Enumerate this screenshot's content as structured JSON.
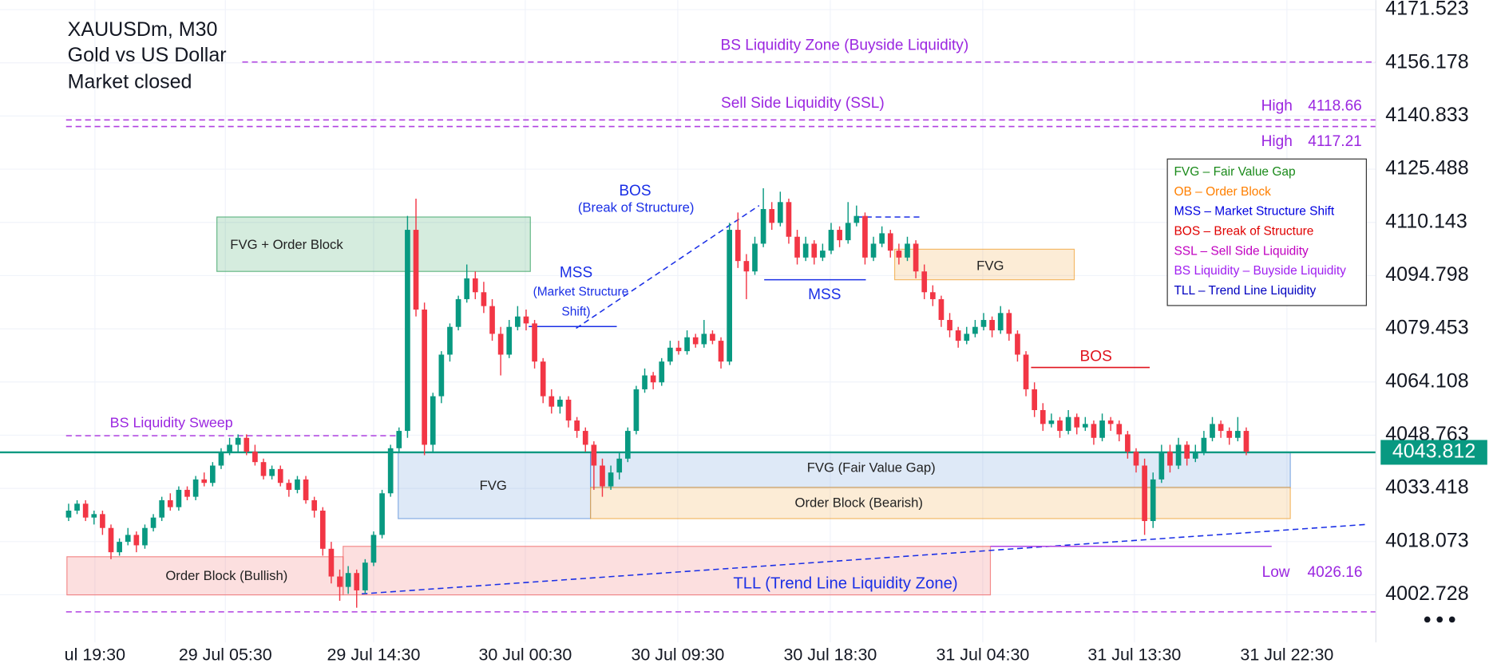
{
  "header": {
    "symbol": "XAUUSDm, M30",
    "name": "Gold vs US Dollar",
    "status": "Market closed"
  },
  "chart_data": {
    "type": "candlestick",
    "up_color": "#089981",
    "down_color": "#f23645",
    "ohlc": [
      [
        4025,
        4029,
        4024,
        4027
      ],
      [
        4027,
        4030,
        4026,
        4029
      ],
      [
        4029,
        4030,
        4024,
        4025
      ],
      [
        4025,
        4027,
        4023,
        4026
      ],
      [
        4026,
        4027,
        4020,
        4022
      ],
      [
        4022,
        4023,
        4013,
        4015
      ],
      [
        4015,
        4019,
        4014,
        4018
      ],
      [
        4018,
        4022,
        4017,
        4020
      ],
      [
        4020,
        4021,
        4015,
        4017
      ],
      [
        4017,
        4023,
        4016,
        4022
      ],
      [
        4022,
        4026,
        4021,
        4025
      ],
      [
        4025,
        4031,
        4024,
        4030
      ],
      [
        4030,
        4032,
        4027,
        4028
      ],
      [
        4028,
        4034,
        4027,
        4033
      ],
      [
        4033,
        4034,
        4030,
        4031
      ],
      [
        4031,
        4037,
        4030,
        4036
      ],
      [
        4036,
        4038,
        4034,
        4035
      ],
      [
        4035,
        4041,
        4034,
        4040
      ],
      [
        4040,
        4045,
        4039,
        4044
      ],
      [
        4044,
        4048,
        4043,
        4046
      ],
      [
        4046,
        4049,
        4044,
        4048
      ],
      [
        4048,
        4049,
        4043,
        4044
      ],
      [
        4044,
        4046,
        4040,
        4041
      ],
      [
        4041,
        4042,
        4036,
        4037
      ],
      [
        4037,
        4040,
        4036,
        4039
      ],
      [
        4039,
        4040,
        4034,
        4035
      ],
      [
        4035,
        4036,
        4031,
        4033
      ],
      [
        4033,
        4037,
        4032,
        4036
      ],
      [
        4036,
        4037,
        4029,
        4030
      ],
      [
        4030,
        4031,
        4025,
        4027
      ],
      [
        4027,
        4028,
        4014,
        4016
      ],
      [
        4016,
        4018,
        4006,
        4008
      ],
      [
        4008,
        4010,
        4001,
        4005
      ],
      [
        4005,
        4011,
        4003,
        4009
      ],
      [
        4009,
        4010,
        3999,
        4004
      ],
      [
        4004,
        4013,
        4003,
        4012
      ],
      [
        4012,
        4021,
        4011,
        4020
      ],
      [
        4020,
        4033,
        4019,
        4032
      ],
      [
        4032,
        4046,
        4031,
        4045
      ],
      [
        4045,
        4051,
        4044,
        4050
      ],
      [
        4050,
        4112,
        4048,
        4108
      ],
      [
        4108,
        4117,
        4083,
        4085
      ],
      [
        4085,
        4087,
        4043,
        4046
      ],
      [
        4046,
        4061,
        4044,
        4060
      ],
      [
        4060,
        4073,
        4058,
        4072
      ],
      [
        4072,
        4081,
        4070,
        4080
      ],
      [
        4080,
        4089,
        4079,
        4088
      ],
      [
        4088,
        4098,
        4087,
        4094
      ],
      [
        4094,
        4096,
        4088,
        4090
      ],
      [
        4090,
        4093,
        4084,
        4086
      ],
      [
        4086,
        4088,
        4076,
        4078
      ],
      [
        4078,
        4080,
        4066,
        4072
      ],
      [
        4072,
        4082,
        4071,
        4080
      ],
      [
        4080,
        4086,
        4079,
        4083
      ],
      [
        4083,
        4085,
        4079,
        4081
      ],
      [
        4081,
        4082,
        4068,
        4070
      ],
      [
        4070,
        4071,
        4058,
        4060
      ],
      [
        4060,
        4062,
        4055,
        4057
      ],
      [
        4057,
        4060,
        4055,
        4059
      ],
      [
        4059,
        4060,
        4051,
        4053
      ],
      [
        4053,
        4054,
        4048,
        4050
      ],
      [
        4050,
        4051,
        4044,
        4046
      ],
      [
        4046,
        4047,
        4033,
        4040
      ],
      [
        4040,
        4042,
        4031,
        4034
      ],
      [
        4034,
        4040,
        4033,
        4038
      ],
      [
        4038,
        4044,
        4036,
        4042
      ],
      [
        4042,
        4051,
        4041,
        4050
      ],
      [
        4050,
        4063,
        4049,
        4062
      ],
      [
        4062,
        4068,
        4061,
        4066
      ],
      [
        4066,
        4067,
        4062,
        4064
      ],
      [
        4064,
        4071,
        4063,
        4070
      ],
      [
        4070,
        4076,
        4069,
        4074
      ],
      [
        4074,
        4076,
        4072,
        4073
      ],
      [
        4073,
        4079,
        4072,
        4077
      ],
      [
        4077,
        4078,
        4074,
        4075
      ],
      [
        4075,
        4082,
        4074,
        4078
      ],
      [
        4078,
        4079,
        4075,
        4076
      ],
      [
        4076,
        4077,
        4068,
        4070
      ],
      [
        4070,
        4110,
        4069,
        4108
      ],
      [
        4108,
        4113,
        4097,
        4099
      ],
      [
        4099,
        4101,
        4088,
        4096
      ],
      [
        4096,
        4106,
        4095,
        4104
      ],
      [
        4104,
        4120,
        4103,
        4114
      ],
      [
        4114,
        4116,
        4108,
        4110
      ],
      [
        4110,
        4119,
        4109,
        4116
      ],
      [
        4116,
        4117,
        4104,
        4106
      ],
      [
        4106,
        4108,
        4098,
        4100
      ],
      [
        4100,
        4106,
        4099,
        4104
      ],
      [
        4104,
        4105,
        4098,
        4100
      ],
      [
        4100,
        4104,
        4099,
        4102
      ],
      [
        4102,
        4110,
        4101,
        4108
      ],
      [
        4108,
        4109,
        4103,
        4105
      ],
      [
        4105,
        4116,
        4104,
        4110
      ],
      [
        4110,
        4115,
        4109,
        4112
      ],
      [
        4112,
        4113,
        4098,
        4100
      ],
      [
        4100,
        4106,
        4099,
        4104
      ],
      [
        4104,
        4109,
        4103,
        4107
      ],
      [
        4107,
        4108,
        4100,
        4102
      ],
      [
        4102,
        4104,
        4098,
        4100
      ],
      [
        4100,
        4106,
        4099,
        4104
      ],
      [
        4104,
        4105,
        4094,
        4096
      ],
      [
        4096,
        4098,
        4088,
        4090
      ],
      [
        4090,
        4092,
        4086,
        4088
      ],
      [
        4088,
        4089,
        4080,
        4082
      ],
      [
        4082,
        4084,
        4077,
        4079
      ],
      [
        4079,
        4080,
        4074,
        4076
      ],
      [
        4076,
        4080,
        4075,
        4078
      ],
      [
        4078,
        4082,
        4077,
        4080
      ],
      [
        4080,
        4084,
        4079,
        4082
      ],
      [
        4082,
        4083,
        4077,
        4079
      ],
      [
        4079,
        4086,
        4078,
        4084
      ],
      [
        4084,
        4085,
        4076,
        4078
      ],
      [
        4078,
        4079,
        4070,
        4072
      ],
      [
        4072,
        4073,
        4060,
        4062
      ],
      [
        4062,
        4064,
        4054,
        4056
      ],
      [
        4056,
        4058,
        4050,
        4052
      ],
      [
        4052,
        4055,
        4051,
        4053
      ],
      [
        4053,
        4054,
        4048,
        4050
      ],
      [
        4050,
        4056,
        4049,
        4054
      ],
      [
        4054,
        4055,
        4049,
        4051
      ],
      [
        4051,
        4054,
        4050,
        4052
      ],
      [
        4052,
        4053,
        4046,
        4048
      ],
      [
        4048,
        4055,
        4047,
        4053
      ],
      [
        4053,
        4054,
        4050,
        4052
      ],
      [
        4052,
        4053,
        4047,
        4049
      ],
      [
        4049,
        4050,
        4042,
        4044
      ],
      [
        4044,
        4045,
        4038,
        4040
      ],
      [
        4040,
        4042,
        4020,
        4024
      ],
      [
        4024,
        4038,
        4022,
        4036
      ],
      [
        4036,
        4046,
        4035,
        4044
      ],
      [
        4044,
        4046,
        4038,
        4040
      ],
      [
        4040,
        4048,
        4039,
        4046
      ],
      [
        4046,
        4047,
        4040,
        4042
      ],
      [
        4042,
        4046,
        4041,
        4044
      ],
      [
        4044,
        4050,
        4043,
        4048
      ],
      [
        4048,
        4054,
        4047,
        4052
      ],
      [
        4052,
        4053,
        4048,
        4050
      ],
      [
        4050,
        4051,
        4046,
        4048
      ],
      [
        4048,
        4054,
        4047,
        4050
      ],
      [
        4050,
        4051,
        4043,
        4044
      ]
    ],
    "xlim": [
      -8.1,
      154.3
    ],
    "xticks": [
      {
        "value": 3.1,
        "label": "ul 19:30"
      },
      {
        "value": 18.5,
        "label": "29 Jul 05:30"
      },
      {
        "value": 36.0,
        "label": "29 Jul 14:30"
      },
      {
        "value": 53.9,
        "label": "30 Jul 00:30"
      },
      {
        "value": 71.9,
        "label": "30 Jul 09:30"
      },
      {
        "value": 89.9,
        "label": "30 Jul 18:30"
      },
      {
        "value": 107.9,
        "label": "31 Jul 04:30"
      },
      {
        "value": 125.8,
        "label": "31 Jul 13:30"
      },
      {
        "value": 143.8,
        "label": "31 Jul 22:30"
      }
    ],
    "ylim": [
      3989.0,
      4174.27
    ],
    "yticks": [
      4002.728,
      4018.073,
      4033.418,
      4048.763,
      4064.108,
      4079.453,
      4094.798,
      4110.143,
      4125.488,
      4140.833,
      4156.178,
      4171.523
    ],
    "grid": true,
    "last_price": {
      "value": 4043.812,
      "color": "#089981"
    },
    "zones": [
      {
        "label": "FVG + Order Block",
        "x": [
          17.5,
          54.5
        ],
        "y": [
          4096.0,
          4111.7
        ],
        "color": "#2e9e5b"
      },
      {
        "label": "FVG",
        "x": [
          97.5,
          118.7
        ],
        "y": [
          4093.6,
          4102.4
        ],
        "color": "#f0a030"
      },
      {
        "label": "FVG",
        "x": [
          38.9,
          61.6
        ],
        "y": [
          4024.7,
          4043.9
        ],
        "color": "#5a8fd8"
      },
      {
        "label": "FVG (Fair Value Gap)",
        "x": [
          61.6,
          144.2
        ],
        "y": [
          4033.7,
          4043.9
        ],
        "color": "#5a8fd8"
      },
      {
        "label": "Order Block (Bearish)",
        "x": [
          61.6,
          144.2
        ],
        "y": [
          4024.7,
          4033.7
        ],
        "color": "#f0a030"
      },
      {
        "label": "Order Block (Bullish)",
        "x": [
          -0.2,
          32.4
        ],
        "y": [
          4002.7,
          4013.7
        ],
        "color": "#f06060"
      },
      {
        "label": "TLL (Trend Line Liquidity Zone)",
        "x": [
          32.4,
          108.8
        ],
        "y": [
          4002.7,
          4016.7
        ],
        "color": "#f06060"
      }
    ],
    "lines": [
      {
        "label": "BS Liquidity Zone (Buyside Liquidity)",
        "x": [
          20.5,
          154.3
        ],
        "y": [
          4156.4,
          4156.4
        ],
        "color": "#b040e0",
        "dash": true
      },
      {
        "label": "Sell Side Liquidity (SSL)",
        "x": [
          -0.3,
          154.3
        ],
        "y": [
          4139.7,
          4139.7
        ],
        "color": "#b040e0",
        "dash": true
      },
      {
        "x": [
          -0.3,
          154.3
        ],
        "y": [
          4137.8,
          4137.8
        ],
        "color": "#b040e0",
        "dash": true
      },
      {
        "x": [
          -0.3,
          154.3
        ],
        "y": [
          3997.8,
          3997.8
        ],
        "color": "#b040e0",
        "dash": true
      },
      {
        "label": "BS Liquidity Sweep",
        "x": [
          -0.3,
          39.1
        ],
        "y": [
          4048.6,
          4048.6
        ],
        "color": "#b040e0",
        "dash": true
      },
      {
        "label": [
          "MSS",
          "(Market Structure",
          "Shift)"
        ],
        "x": [
          54.3,
          64.7
        ],
        "y": [
          4080.1,
          4080.1
        ],
        "color": "#1a2fe6",
        "dash": false
      },
      {
        "label": [
          "BOS",
          "(Break of Structure)"
        ],
        "x": [
          59.9,
          81.5
        ],
        "y": [
          4079.6,
          4115.0
        ],
        "color": "#1a2fe6",
        "dash": true
      },
      {
        "label": "MSS",
        "x": [
          82.1,
          94.1
        ],
        "y": [
          4093.6,
          4093.6
        ],
        "color": "#1a2fe6",
        "dash": false
      },
      {
        "x": [
          93.0,
          100.6
        ],
        "y": [
          4111.7,
          4111.7
        ],
        "color": "#1a2fe6",
        "dash": true
      },
      {
        "label": "BOS",
        "x": [
          113.6,
          127.6
        ],
        "y": [
          4068.3,
          4068.3
        ],
        "color": "#e0141e",
        "dash": false
      },
      {
        "x": [
          34.6,
          153.1
        ],
        "y": [
          4003.0,
          4023.0
        ],
        "color": "#1a2fe6",
        "dash": true
      },
      {
        "x": [
          108.8,
          142.0
        ],
        "y": [
          4016.7,
          4016.7
        ],
        "color": "#b040e0",
        "dash": false
      }
    ],
    "price_labels": [
      {
        "label": "High",
        "value": 4118.66
      },
      {
        "label": "High",
        "value": 4117.21
      },
      {
        "label": "Low",
        "value": 4026.16
      }
    ],
    "legend": {
      "position": "upper right",
      "items": [
        {
          "label": "FVG – Fair Value Gap",
          "color": "#1a8a1a"
        },
        {
          "label": "OB – Order Block",
          "color": "#ff7f00"
        },
        {
          "label": "MSS – Market Structure Shift",
          "color": "#0000e0"
        },
        {
          "label": "BOS – Break of Structure",
          "color": "#e00000"
        },
        {
          "label": "SSL – Sell Side Liquidity",
          "color": "#c000c0"
        },
        {
          "label": "BS Liquidity – Buyside Liquidity",
          "color": "#a020f0"
        },
        {
          "label": "TLL – Trend Line Liquidity",
          "color": "#0000c0"
        }
      ]
    }
  }
}
